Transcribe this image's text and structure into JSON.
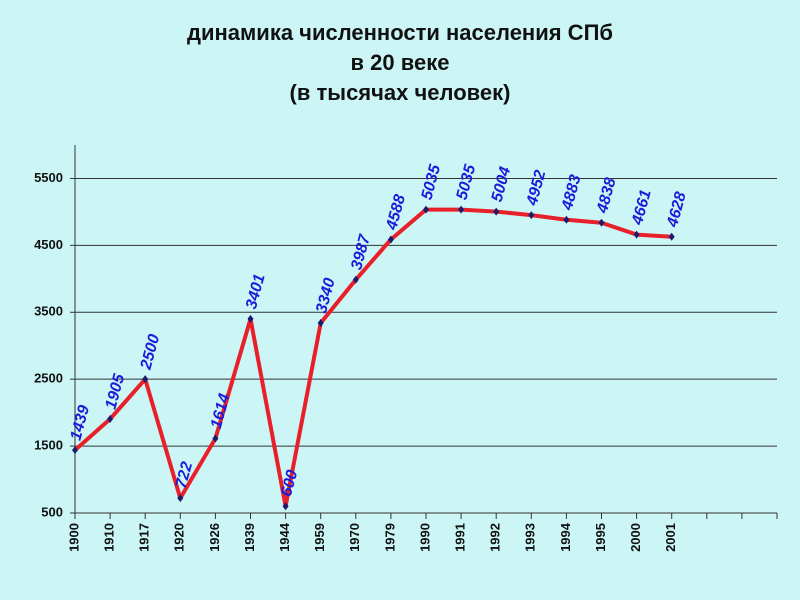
{
  "chart_data": {
    "type": "line",
    "title": [
      "динамика численности населения СПб",
      "в 20 веке",
      "(в тысячах человек)"
    ],
    "categories": [
      "1900",
      "1910",
      "1917",
      "1920",
      "1926",
      "1939",
      "1944",
      "1959",
      "1970",
      "1979",
      "1990",
      "1991",
      "1992",
      "1993",
      "1994",
      "1995",
      "2000",
      "2001"
    ],
    "values": [
      1439,
      1905,
      2500,
      722,
      1614,
      3401,
      600,
      3340,
      3987,
      4588,
      5035,
      5035,
      5004,
      4952,
      4883,
      4838,
      4661,
      4628
    ],
    "color": "#e8202a",
    "marker_color": "#1a1a6e",
    "label_color": "#1c1cd8",
    "ylim": [
      500,
      6000
    ],
    "yticks": [
      500,
      1500,
      2500,
      3500,
      4500,
      5500
    ],
    "grid": true
  }
}
